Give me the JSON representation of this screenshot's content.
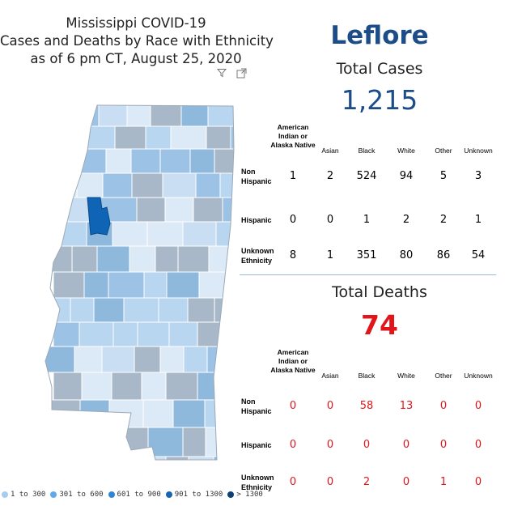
{
  "title": {
    "line1": "Mississippi COVID-19",
    "line2": "Cases and Deaths by Race with Ethnicity",
    "line3": "as of 6 pm CT, August 25, 2020"
  },
  "county_name": "Leflore",
  "cases": {
    "label": "Total Cases",
    "value": "1,215",
    "columns": [
      "American Indian or Alaska Native",
      "Asian",
      "Black",
      "White",
      "Other",
      "Unknown"
    ],
    "rows": [
      {
        "label": "Non Hispanic",
        "values": [
          "1",
          "2",
          "524",
          "94",
          "5",
          "3"
        ]
      },
      {
        "label": "Hispanic",
        "values": [
          "0",
          "0",
          "1",
          "2",
          "2",
          "1"
        ]
      },
      {
        "label": "Unknown Ethnicity",
        "values": [
          "8",
          "1",
          "351",
          "80",
          "86",
          "54"
        ]
      }
    ]
  },
  "deaths": {
    "label": "Total Deaths",
    "value": "74",
    "columns": [
      "American Indian or Alaska Native",
      "Asian",
      "Black",
      "White",
      "Other",
      "Unknown"
    ],
    "rows": [
      {
        "label": "Non Hispanic",
        "values": [
          "0",
          "0",
          "58",
          "13",
          "0",
          "0"
        ]
      },
      {
        "label": "Hispanic",
        "values": [
          "0",
          "0",
          "0",
          "0",
          "0",
          "0"
        ]
      },
      {
        "label": "Unknown Ethnicity",
        "values": [
          "0",
          "0",
          "2",
          "0",
          "1",
          "0"
        ]
      }
    ]
  },
  "legend": [
    {
      "label": "1 to 300",
      "color": "#a6ccef"
    },
    {
      "label": "301 to 600",
      "color": "#62a8ea"
    },
    {
      "label": "601 to 900",
      "color": "#2f86d6"
    },
    {
      "label": "901 to 1300",
      "color": "#1466b4"
    },
    {
      "label": "> 1300",
      "color": "#0d3e74"
    }
  ],
  "map": {
    "selected_county": "Leflore",
    "selected_color": "#0f64b6",
    "dimmed_colors": [
      "#b9d6f0",
      "#9cc3e6",
      "#a8b8c8",
      "#c9def2",
      "#8fb8dd",
      "#dce9f6"
    ]
  },
  "icons": [
    "filter-icon",
    "focus-mode-icon"
  ]
}
